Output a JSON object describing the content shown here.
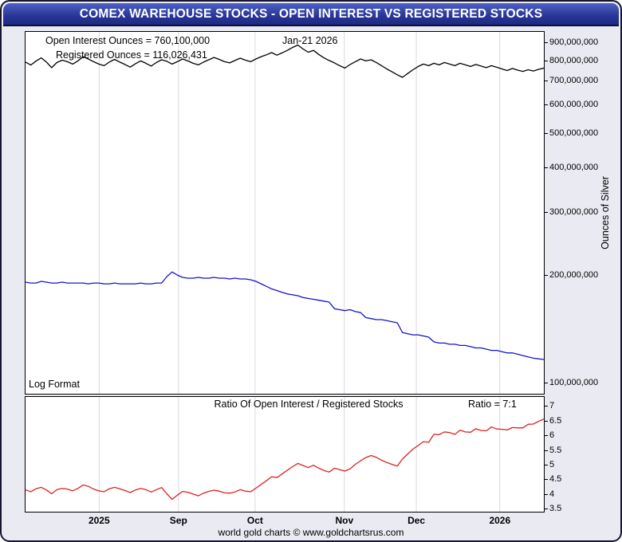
{
  "window": {
    "title": "COMEX WAREHOUSE STOCKS - OPEN INTEREST VS REGISTERED STOCKS"
  },
  "annotations": {
    "open_interest_label": "Open Interest Ounces = 760,100,000",
    "registered_label": "Registered Ounces = 116,026,431",
    "date_label": "Jan-21  2026",
    "log_format_label": "Log Format",
    "ratio_title": "Ratio Of Open Interest / Registered Stocks",
    "ratio_value": "Ratio = 7:1",
    "y_axis_label": "Ounces of Silver",
    "footer": "world gold charts © www.goldchartsrus.com"
  },
  "colors": {
    "title_bar": "#27339a",
    "background": "#eaeaf2",
    "grid": "#d8d8e2",
    "open_interest": "#000000",
    "registered": "#1414cc",
    "ratio": "#dd2222"
  },
  "x_axis": {
    "labels": [
      {
        "text": "2025",
        "pos": 0.142
      },
      {
        "text": "Sep",
        "pos": 0.295
      },
      {
        "text": "Oct",
        "pos": 0.443
      },
      {
        "text": "Nov",
        "pos": 0.615
      },
      {
        "text": "Dec",
        "pos": 0.754
      },
      {
        "text": "2026",
        "pos": 0.915
      }
    ]
  },
  "chart_data": [
    {
      "type": "line",
      "ylabel": "Ounces of Silver",
      "yscale": "log",
      "ylim": [
        93000000,
        960000000
      ],
      "value_scale": 1000000,
      "values_unit": "ounces (series values given in millions of ounces)",
      "grid": "vertical-month-lines",
      "legend_position": "top-left-annotations",
      "y_ticks": [
        {
          "value": 100000000,
          "label": "100,000,000"
        },
        {
          "value": 200000000,
          "label": "200,000,000"
        },
        {
          "value": 300000000,
          "label": "300,000,000"
        },
        {
          "value": 400000000,
          "label": "400,000,000"
        },
        {
          "value": 500000000,
          "label": "500,000,000"
        },
        {
          "value": 600000000,
          "label": "600,000,000"
        },
        {
          "value": 700000000,
          "label": "700,000,000"
        },
        {
          "value": 800000000,
          "label": "800,000,000"
        },
        {
          "value": 900000000,
          "label": "900,000,000"
        }
      ],
      "series": [
        {
          "id": "open-interest",
          "name": "Open Interest Ounces",
          "color": "#000000",
          "latest_value": 760100000,
          "values": [
            790,
            775,
            795,
            812,
            790,
            762,
            788,
            800,
            792,
            780,
            796,
            818,
            806,
            792,
            780,
            772,
            790,
            804,
            790,
            778,
            765,
            782,
            796,
            784,
            770,
            788,
            802,
            794,
            780,
            792,
            806,
            796,
            784,
            776,
            790,
            802,
            814,
            804,
            792,
            786,
            798,
            810,
            800,
            792,
            806,
            818,
            828,
            840,
            826,
            838,
            852,
            868,
            882,
            860,
            842,
            852,
            830,
            812,
            798,
            786,
            772,
            760,
            778,
            792,
            806,
            796,
            802,
            788,
            772,
            756,
            742,
            728,
            716,
            734,
            752,
            768,
            780,
            772,
            784,
            776,
            788,
            780,
            772,
            784,
            776,
            768,
            778,
            770,
            762,
            772,
            764,
            756,
            748,
            758,
            750,
            744,
            752,
            746,
            754,
            760.1
          ]
        },
        {
          "id": "registered",
          "name": "Registered Ounces",
          "color": "#1414cc",
          "latest_value": 116026431,
          "values": [
            191,
            190,
            190,
            192,
            191,
            190,
            190,
            191,
            190,
            190,
            190,
            190,
            189,
            190,
            190,
            189,
            189,
            190,
            189,
            189,
            189,
            189,
            190,
            189,
            189,
            190,
            190,
            198,
            204,
            200,
            197,
            196,
            196,
            197,
            196,
            196,
            197,
            196,
            196,
            195,
            196,
            195,
            195,
            194,
            192,
            189,
            186,
            183,
            181,
            179,
            177,
            176,
            175,
            173,
            172,
            171,
            170,
            169,
            168,
            161,
            160,
            159,
            160,
            158,
            157,
            152,
            151,
            150,
            150,
            149,
            148,
            147,
            138,
            137,
            136,
            136,
            135,
            134,
            130,
            129,
            129,
            128,
            128,
            127,
            127,
            126,
            125,
            125,
            124,
            123,
            123,
            122,
            121,
            121,
            120,
            119,
            118,
            117,
            116.5,
            116
          ]
        }
      ]
    },
    {
      "type": "line",
      "title": "Ratio Of Open Interest / Registered Stocks",
      "yscale": "linear",
      "ylim": [
        3.4,
        7.3
      ],
      "value_scale": 1,
      "values_unit": "ratio",
      "grid": "vertical-month-lines",
      "y_ticks": [
        {
          "value": 3.5,
          "label": "3.5"
        },
        {
          "value": 4,
          "label": "4"
        },
        {
          "value": 4.5,
          "label": "4.5"
        },
        {
          "value": 5,
          "label": "5"
        },
        {
          "value": 5.5,
          "label": "5.5"
        },
        {
          "value": 6,
          "label": "6"
        },
        {
          "value": 6.5,
          "label": "6.5"
        },
        {
          "value": 7,
          "label": "7"
        }
      ],
      "series": [
        {
          "id": "ratio",
          "name": "Ratio Of Open Interest / Registered Stocks",
          "color": "#dd2222",
          "latest_ratio": "7:1",
          "values": [
            4.14,
            4.08,
            4.18,
            4.23,
            4.14,
            4.01,
            4.15,
            4.19,
            4.17,
            4.11,
            4.19,
            4.31,
            4.26,
            4.17,
            4.11,
            4.08,
            4.18,
            4.23,
            4.18,
            4.12,
            4.05,
            4.14,
            4.19,
            4.15,
            4.07,
            4.15,
            4.22,
            4.01,
            3.82,
            3.96,
            4.09,
            4.06,
            4.0,
            3.94,
            4.03,
            4.09,
            4.13,
            4.1,
            4.04,
            4.03,
            4.07,
            4.15,
            4.1,
            4.08,
            4.2,
            4.33,
            4.45,
            4.59,
            4.56,
            4.68,
            4.81,
            4.93,
            5.04,
            4.97,
            4.9,
            4.98,
            4.88,
            4.8,
            4.75,
            4.88,
            4.83,
            4.78,
            4.86,
            5.01,
            5.13,
            5.24,
            5.31,
            5.25,
            5.15,
            5.07,
            5.01,
            4.95,
            5.19,
            5.36,
            5.53,
            5.65,
            5.78,
            5.76,
            6.03,
            6.02,
            6.11,
            6.09,
            6.03,
            6.17,
            6.11,
            6.1,
            6.22,
            6.16,
            6.15,
            6.28,
            6.21,
            6.2,
            6.18,
            6.26,
            6.25,
            6.25,
            6.37,
            6.38,
            6.47,
            6.55
          ]
        }
      ]
    }
  ]
}
